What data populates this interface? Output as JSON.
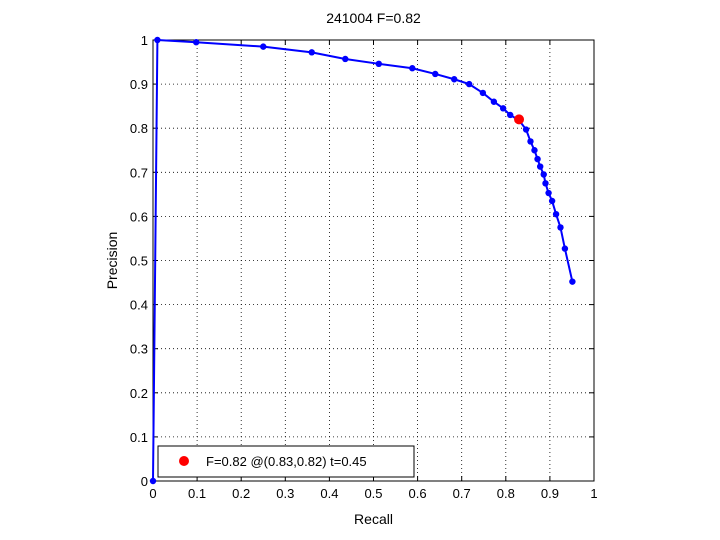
{
  "chart_data": {
    "type": "scatter",
    "title": "241004 F=0.82",
    "xlabel": "Recall",
    "ylabel": "Precision",
    "xlim": [
      0,
      1
    ],
    "ylim": [
      0,
      1
    ],
    "grid": true,
    "grid_style": "dotted",
    "x_ticks": [
      0,
      0.1,
      0.2,
      0.3,
      0.4,
      0.5,
      0.6,
      0.7,
      0.8,
      0.9,
      1
    ],
    "y_ticks": [
      0,
      0.1,
      0.2,
      0.3,
      0.4,
      0.5,
      0.6,
      0.7,
      0.8,
      0.9,
      1
    ],
    "x_tick_labels": [
      "0",
      "0.1",
      "0.2",
      "0.3",
      "0.4",
      "0.5",
      "0.6",
      "0.7",
      "0.8",
      "0.9",
      "1"
    ],
    "y_tick_labels": [
      "0",
      "0.1",
      "0.2",
      "0.3",
      "0.4",
      "0.5",
      "0.6",
      "0.7",
      "0.8",
      "0.9",
      "1"
    ],
    "series": [
      {
        "color": "#0000ff",
        "style": "line-with-dots",
        "points": [
          [
            0.0,
            0.0
          ],
          [
            0.01,
            1.0
          ],
          [
            0.098,
            0.995
          ],
          [
            0.25,
            0.985
          ],
          [
            0.36,
            0.972
          ],
          [
            0.436,
            0.957
          ],
          [
            0.512,
            0.946
          ],
          [
            0.588,
            0.936
          ],
          [
            0.64,
            0.923
          ],
          [
            0.683,
            0.911
          ],
          [
            0.717,
            0.9
          ],
          [
            0.748,
            0.88
          ],
          [
            0.773,
            0.86
          ],
          [
            0.794,
            0.845
          ],
          [
            0.81,
            0.83
          ],
          [
            0.83,
            0.818
          ],
          [
            0.846,
            0.797
          ],
          [
            0.856,
            0.77
          ],
          [
            0.865,
            0.75
          ],
          [
            0.872,
            0.73
          ],
          [
            0.878,
            0.713
          ],
          [
            0.886,
            0.695
          ],
          [
            0.89,
            0.675
          ],
          [
            0.897,
            0.653
          ],
          [
            0.905,
            0.635
          ],
          [
            0.914,
            0.605
          ],
          [
            0.924,
            0.575
          ],
          [
            0.934,
            0.527
          ],
          [
            0.951,
            0.452
          ]
        ]
      },
      {
        "color": "#ff0000",
        "style": "marker",
        "points": [
          [
            0.83,
            0.82
          ]
        ]
      }
    ],
    "legend": {
      "position": "bottom-left",
      "entries": [
        {
          "label": "F=0.82 @(0.83,0.82) t=0.45",
          "color": "#ff0000"
        }
      ]
    }
  }
}
